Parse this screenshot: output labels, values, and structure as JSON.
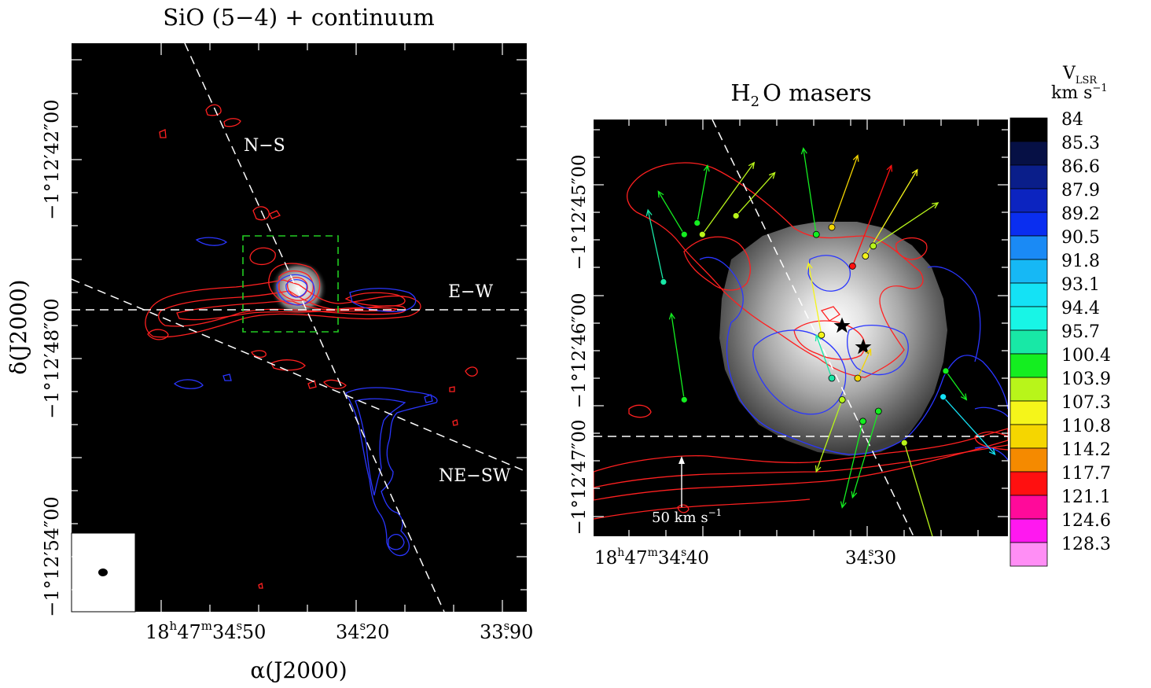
{
  "left_panel": {
    "title": "SiO (5−4) + continuum",
    "xlabel": "α(J2000)",
    "ylabel": "δ(J2000)",
    "xticks": [
      {
        "h": "18",
        "m": "47",
        "s": "34",
        "frac": ".50"
      },
      {
        "s": "34",
        "frac": ".20"
      },
      {
        "s": "33",
        "frac": ".90"
      }
    ],
    "yticks": [
      "−1°12′42″00",
      "−1°12′48″00",
      "−1°12′54″00"
    ],
    "outflow_labels": {
      "ns": "N−S",
      "ew": "E−W",
      "nesw": "NE−SW"
    },
    "line_color": "#ffffff",
    "box_color": "#22cc22",
    "red_contour_color": "#ff2020",
    "blue_contour_color": "#2a36ff"
  },
  "right_panel": {
    "title_main": "H",
    "title_sub": "2",
    "title_rest": "O masers",
    "xticks": [
      {
        "h": "18",
        "m": "47",
        "s": "34",
        "frac": ".40"
      },
      {
        "s": "34",
        "frac": ".30"
      }
    ],
    "yticks": [
      "−1°12′45″00",
      "−1°12′46″00",
      "−1°12′47″00"
    ],
    "scale_bar_label": "50 km s",
    "scale_bar_exp": "−1",
    "scale_bar_kms": 50
  },
  "colorbar": {
    "title_v": "V",
    "title_sub": "LSR",
    "title_units": "km s",
    "title_exp": "−1",
    "levels": [
      "84",
      "85.3",
      "86.6",
      "87.9",
      "89.2",
      "90.5",
      "91.8",
      "93.1",
      "94.4",
      "95.7",
      "100.4",
      "103.9",
      "107.3",
      "110.8",
      "114.2",
      "117.7",
      "121.1",
      "124.6",
      "128.3"
    ],
    "colors": [
      "#000000",
      "#061045",
      "#0a1e8a",
      "#0c24c0",
      "#0a2ef0",
      "#1a8af5",
      "#16b8f5",
      "#14e2f5",
      "#18f5e6",
      "#18e8a6",
      "#14ee20",
      "#b8f51a",
      "#f5f51a",
      "#f5d600",
      "#f58a00",
      "#ff1010",
      "#ff0a9a",
      "#ff18f0",
      "#ff8ef5"
    ]
  },
  "chart_data": [
    {
      "type": "scatter",
      "title": "SiO (5−4) + continuum",
      "xlabel": "α(J2000)",
      "ylabel": "δ(J2000)",
      "xlim": [
        "18h47m34.55s",
        "18h47m33.85s"
      ],
      "ylim": [
        "−1°12′56″",
        "−1°12′40″"
      ],
      "series": [
        {
          "name": "N−S",
          "kind": "outflow axis"
        },
        {
          "name": "E−W",
          "kind": "outflow axis"
        },
        {
          "name": "NE−SW",
          "kind": "outflow axis"
        }
      ]
    },
    {
      "type": "scatter",
      "title": "H2O masers",
      "xlim": [
        "18h47m34.41s",
        "18h47m34.25s"
      ],
      "ylim": [
        "−1°12′47.5″",
        "−1°12′44.6″"
      ],
      "colorbar_kms": [
        84,
        85.3,
        86.6,
        87.9,
        89.2,
        90.5,
        91.8,
        93.1,
        94.4,
        95.7,
        100.4,
        103.9,
        107.3,
        110.8,
        114.2,
        117.7,
        121.1,
        124.6,
        128.3
      ],
      "masers": [
        {
          "ra_s": 34.37,
          "dec_as": 45.32,
          "v": 100.4,
          "dra": -0.004,
          "ddec": 0.4
        },
        {
          "ra_s": 34.375,
          "dec_as": 45.4,
          "v": 100.4,
          "dra": 0.01,
          "ddec": 0.3
        },
        {
          "ra_s": 34.383,
          "dec_as": 45.73,
          "v": 95.7,
          "dra": 0.006,
          "ddec": 0.5
        },
        {
          "ra_s": 34.368,
          "dec_as": 45.4,
          "v": 103.9,
          "dra": -0.02,
          "ddec": 0.5
        },
        {
          "ra_s": 34.355,
          "dec_as": 45.27,
          "v": 103.9,
          "dra": -0.015,
          "ddec": 0.3
        },
        {
          "ra_s": 34.324,
          "dec_as": 45.4,
          "v": 100.4,
          "dra": 0.005,
          "ddec": 0.6
        },
        {
          "ra_s": 34.318,
          "dec_as": 45.35,
          "v": 110.8,
          "dra": -0.01,
          "ddec": 0.5
        },
        {
          "ra_s": 34.31,
          "dec_as": 45.62,
          "v": 117.7,
          "dra": -0.015,
          "ddec": 0.7
        },
        {
          "ra_s": 34.305,
          "dec_as": 45.55,
          "v": 107.3,
          "dra": -0.02,
          "ddec": 0.6
        },
        {
          "ra_s": 34.302,
          "dec_as": 45.48,
          "v": 103.9,
          "dra": -0.025,
          "ddec": 0.3
        },
        {
          "ra_s": 34.322,
          "dec_as": 46.1,
          "v": 107.3,
          "dra": 0.005,
          "ddec": 0.5
        },
        {
          "ra_s": 34.318,
          "dec_as": 46.4,
          "v": 95.7,
          "dra": 0.006,
          "ddec": 0.3
        },
        {
          "ra_s": 34.308,
          "dec_as": 46.4,
          "v": 110.8,
          "dra": -0.005,
          "ddec": 0.2
        },
        {
          "ra_s": 34.314,
          "dec_as": 46.55,
          "v": 103.9,
          "dra": 0.01,
          "ddec": -0.5
        },
        {
          "ra_s": 34.306,
          "dec_as": 46.7,
          "v": 100.4,
          "dra": 0.008,
          "ddec": -0.6
        },
        {
          "ra_s": 34.3,
          "dec_as": 46.63,
          "v": 100.4,
          "dra": 0.01,
          "ddec": -0.6
        },
        {
          "ra_s": 34.375,
          "dec_as": 46.55,
          "v": 100.4,
          "dra": 0.005,
          "ddec": 0.6
        },
        {
          "ra_s": 34.29,
          "dec_as": 46.85,
          "v": 103.9,
          "dra": -0.015,
          "ddec": -0.9
        },
        {
          "ra_s": 34.274,
          "dec_as": 46.35,
          "v": 100.4,
          "dra": -0.008,
          "ddec": -0.2
        },
        {
          "ra_s": 34.275,
          "dec_as": 46.53,
          "v": 93.1,
          "dra": -0.02,
          "ddec": -0.4
        }
      ]
    }
  ]
}
